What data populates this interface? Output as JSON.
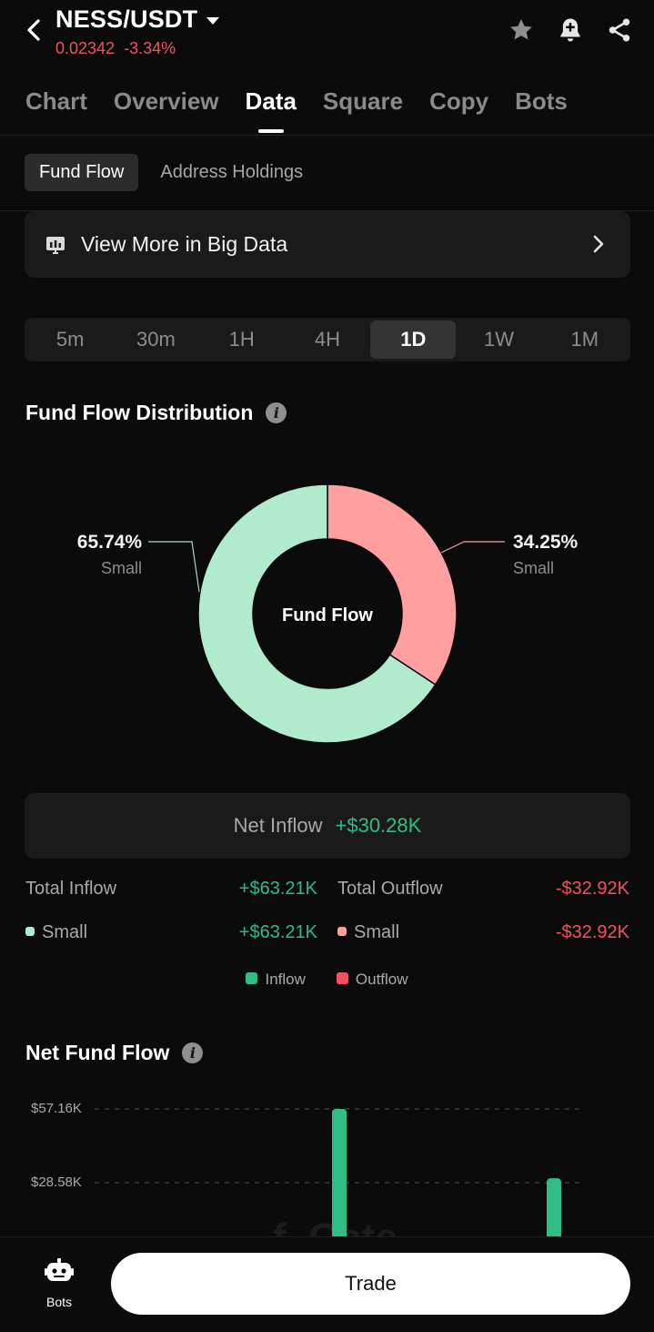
{
  "header": {
    "pair": "NESS/USDT",
    "price": "0.02342",
    "change": "-3.34%"
  },
  "tabs": [
    "Chart",
    "Overview",
    "Data",
    "Square",
    "Copy",
    "Bots"
  ],
  "active_tab": "Data",
  "subtabs": [
    "Fund Flow",
    "Address Holdings"
  ],
  "active_subtab": "Fund Flow",
  "banner": {
    "text": "View More in Big Data"
  },
  "ranges": [
    "5m",
    "30m",
    "1H",
    "4H",
    "1D",
    "1W",
    "1M"
  ],
  "active_range": "1D",
  "distribution": {
    "title": "Fund Flow Distribution",
    "center_label": "Fund Flow",
    "left_pct": "65.74%",
    "left_label": "Small",
    "right_pct": "34.25%",
    "right_label": "Small",
    "inflow_share": 65.74,
    "outflow_share": 34.25,
    "inflow_color": "#b0ebce",
    "outflow_color": "#ff9fa0"
  },
  "net_inflow": {
    "label": "Net Inflow",
    "value": "+$30.28K"
  },
  "totals": {
    "inflow_label": "Total Inflow",
    "inflow_value": "+$63.21K",
    "outflow_label": "Total Outflow",
    "outflow_value": "-$32.92K",
    "small_in_label": "Small",
    "small_in_value": "+$63.21K",
    "small_out_label": "Small",
    "small_out_value": "-$32.92K"
  },
  "legend": {
    "inflow": "Inflow",
    "outflow": "Outflow",
    "inflow_color": "#2ebd85",
    "outflow_color": "#f0535f"
  },
  "net_fund_flow": {
    "title": "Net Fund Flow",
    "watermark": "f. Gate"
  },
  "chart_data": {
    "type": "bar",
    "title": "Net Fund Flow",
    "y_ticks": [
      "$57.16K",
      "$28.58K"
    ],
    "y_tick_values": [
      57.16,
      28.58
    ],
    "unit": "K USD",
    "grid": "dashed",
    "series": [
      {
        "values": [
          57.16,
          30.28
        ]
      }
    ],
    "bar_color": "#2ebd85"
  },
  "bottom": {
    "bots_label": "Bots",
    "trade_label": "Trade"
  }
}
